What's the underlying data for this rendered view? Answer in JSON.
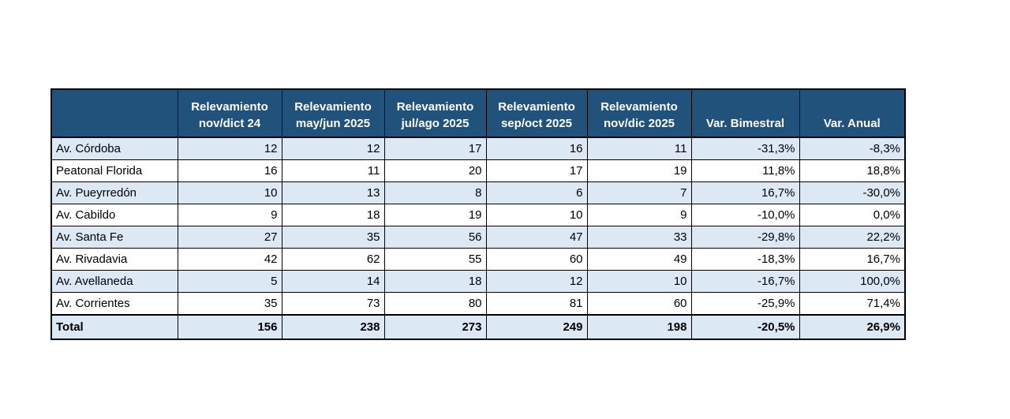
{
  "colors": {
    "header_bg": "#21527C",
    "header_text": "#FFFFFF",
    "row_alt_bg": "#DCE9F5",
    "row_bg": "#FFFFFF",
    "border": "#000000"
  },
  "table": {
    "header": {
      "corner": "",
      "columns": [
        {
          "line1": "Relevamiento",
          "line2": "nov/dict 24"
        },
        {
          "line1": "Relevamiento",
          "line2": "may/jun 2025"
        },
        {
          "line1": "Relevamiento",
          "line2": "jul/ago 2025"
        },
        {
          "line1": "Relevamiento",
          "line2": "sep/oct 2025"
        },
        {
          "line1": "Relevamiento",
          "line2": "nov/dic 2025"
        },
        {
          "line1": "",
          "line2": "Var. Bimestral"
        },
        {
          "line1": "",
          "line2": "Var. Anual"
        }
      ]
    },
    "rows": [
      {
        "label": "Av. Córdoba",
        "values": [
          "12",
          "12",
          "17",
          "16",
          "11",
          "-31,3%",
          "-8,3%"
        ]
      },
      {
        "label": "Peatonal Florida",
        "values": [
          "16",
          "11",
          "20",
          "17",
          "19",
          "11,8%",
          "18,8%"
        ]
      },
      {
        "label": "Av. Pueyrredón",
        "values": [
          "10",
          "13",
          "8",
          "6",
          "7",
          "16,7%",
          "-30,0%"
        ]
      },
      {
        "label": "Av. Cabildo",
        "values": [
          "9",
          "18",
          "19",
          "10",
          "9",
          "-10,0%",
          "0,0%"
        ]
      },
      {
        "label": "Av. Santa Fe",
        "values": [
          "27",
          "35",
          "56",
          "47",
          "33",
          "-29,8%",
          "22,2%"
        ]
      },
      {
        "label": "Av. Rivadavia",
        "values": [
          "42",
          "62",
          "55",
          "60",
          "49",
          "-18,3%",
          "16,7%"
        ]
      },
      {
        "label": "Av. Avellaneda",
        "values": [
          "5",
          "14",
          "18",
          "12",
          "10",
          "-16,7%",
          "100,0%"
        ]
      },
      {
        "label": "Av. Corrientes",
        "values": [
          "35",
          "73",
          "80",
          "81",
          "60",
          "-25,9%",
          "71,4%"
        ]
      }
    ],
    "total": {
      "label": "Total",
      "values": [
        "156",
        "238",
        "273",
        "249",
        "198",
        "-20,5%",
        "26,9%"
      ]
    }
  },
  "chart_data": {
    "type": "table",
    "title": "",
    "columns": [
      "",
      "Relevamiento nov/dict 24",
      "Relevamiento may/jun 2025",
      "Relevamiento jul/ago 2025",
      "Relevamiento sep/oct 2025",
      "Relevamiento nov/dic 2025",
      "Var. Bimestral",
      "Var. Anual"
    ],
    "rows": [
      [
        "Av. Córdoba",
        12,
        12,
        17,
        16,
        11,
        "-31,3%",
        "-8,3%"
      ],
      [
        "Peatonal Florida",
        16,
        11,
        20,
        17,
        19,
        "11,8%",
        "18,8%"
      ],
      [
        "Av. Pueyrredón",
        10,
        13,
        8,
        6,
        7,
        "16,7%",
        "-30,0%"
      ],
      [
        "Av. Cabildo",
        9,
        18,
        19,
        10,
        9,
        "-10,0%",
        "0,0%"
      ],
      [
        "Av. Santa Fe",
        27,
        35,
        56,
        47,
        33,
        "-29,8%",
        "22,2%"
      ],
      [
        "Av. Rivadavia",
        42,
        62,
        55,
        60,
        49,
        "-18,3%",
        "16,7%"
      ],
      [
        "Av. Avellaneda",
        5,
        14,
        18,
        12,
        10,
        "-16,7%",
        "100,0%"
      ],
      [
        "Av. Corrientes",
        35,
        73,
        80,
        81,
        60,
        "-25,9%",
        "71,4%"
      ],
      [
        "Total",
        156,
        238,
        273,
        249,
        198,
        "-20,5%",
        "26,9%"
      ]
    ]
  }
}
